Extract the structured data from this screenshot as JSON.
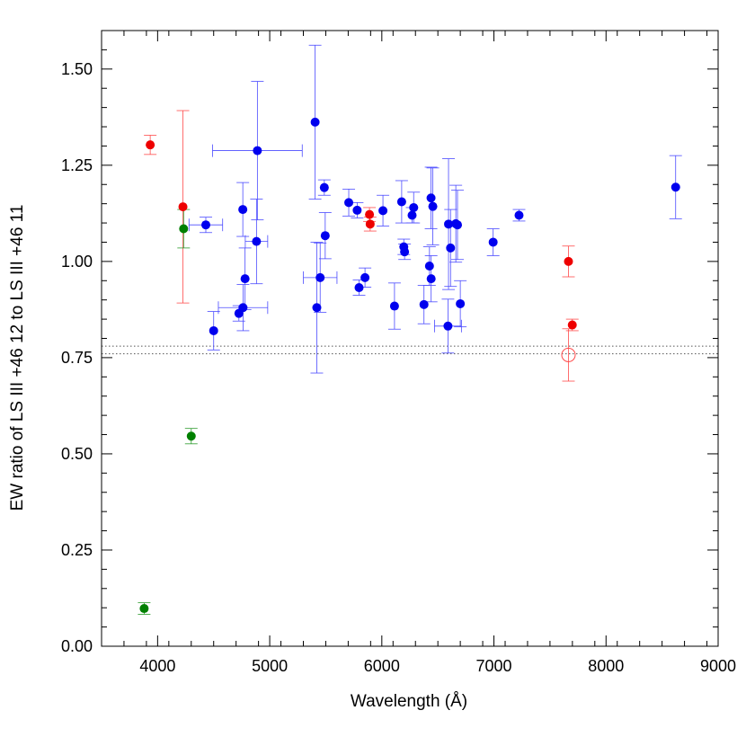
{
  "chart_data": {
    "type": "scatter",
    "title": "",
    "xlabel": "Wavelength (Å)",
    "ylabel": "EW ratio of LS III +46 12 to LS III +46 11",
    "xlim": [
      3500,
      9000
    ],
    "ylim": [
      0.0,
      1.6
    ],
    "x_ticks": [
      4000,
      5000,
      6000,
      7000,
      8000,
      9000
    ],
    "x_tick_labels": [
      "4000",
      "5000",
      "6000",
      "7000",
      "8000",
      "9000"
    ],
    "y_ticks": [
      0.0,
      0.25,
      0.5,
      0.75,
      1.0,
      1.25,
      1.5
    ],
    "y_tick_labels": [
      "0.00",
      "0.25",
      "0.50",
      "0.75",
      "1.00",
      "1.25",
      "1.50"
    ],
    "reference_lines": [
      0.76,
      0.78
    ],
    "colors": {
      "blue": "#0000ee",
      "red": "#ee0000",
      "green": "#008000",
      "ref_line": "#555555"
    },
    "series": [
      {
        "name": "blue",
        "points": [
          {
            "x": 4430,
            "y": 1.095,
            "ey": 0.02,
            "ex": 150
          },
          {
            "x": 4500,
            "y": 0.82,
            "ey": 0.05
          },
          {
            "x": 4725,
            "y": 0.865,
            "ey": 0.02
          },
          {
            "x": 4760,
            "y": 1.135,
            "ey": 0.07
          },
          {
            "x": 4762,
            "y": 0.88,
            "ey": 0.06,
            "ex": 220
          },
          {
            "x": 4780,
            "y": 0.955,
            "ey": 0.08
          },
          {
            "x": 4882,
            "y": 1.052,
            "ey": 0.11,
            "ex": 100
          },
          {
            "x": 4890,
            "y": 1.288,
            "ey": 0.18,
            "ex": 400
          },
          {
            "x": 5405,
            "y": 1.362,
            "ey": 0.2
          },
          {
            "x": 5420,
            "y": 0.88,
            "ey": 0.17
          },
          {
            "x": 5450,
            "y": 0.958,
            "ey": 0.09,
            "ex": 150
          },
          {
            "x": 5487,
            "y": 1.192,
            "ey": 0.02
          },
          {
            "x": 5495,
            "y": 1.067,
            "ey": 0.06
          },
          {
            "x": 5705,
            "y": 1.153,
            "ey": 0.035
          },
          {
            "x": 5780,
            "y": 1.133,
            "ey": 0.02
          },
          {
            "x": 5797,
            "y": 0.932,
            "ey": 0.02
          },
          {
            "x": 5850,
            "y": 0.958,
            "ey": 0.025
          },
          {
            "x": 6010,
            "y": 1.132,
            "ey": 0.04
          },
          {
            "x": 6113,
            "y": 0.884,
            "ey": 0.06
          },
          {
            "x": 6177,
            "y": 1.155,
            "ey": 0.055
          },
          {
            "x": 6196,
            "y": 1.038,
            "ey": 0.02
          },
          {
            "x": 6203,
            "y": 1.025,
            "ey": 0.02
          },
          {
            "x": 6270,
            "y": 1.12,
            "ey": 0.02
          },
          {
            "x": 6284,
            "y": 1.14,
            "ey": 0.04
          },
          {
            "x": 6376,
            "y": 0.888,
            "ey": 0.05
          },
          {
            "x": 6425,
            "y": 0.988,
            "ey": 0.05
          },
          {
            "x": 6439,
            "y": 1.165,
            "ey": 0.08
          },
          {
            "x": 6440,
            "y": 0.955,
            "ey": 0.06
          },
          {
            "x": 6455,
            "y": 1.143,
            "ey": 0.1
          },
          {
            "x": 6590,
            "y": 0.832,
            "ey": 0.07,
            "ex": 120
          },
          {
            "x": 6595,
            "y": 1.097,
            "ey": 0.17
          },
          {
            "x": 6613,
            "y": 1.035,
            "ey": 0.1
          },
          {
            "x": 6660,
            "y": 1.098,
            "ey": 0.1
          },
          {
            "x": 6675,
            "y": 1.095,
            "ey": 0.09
          },
          {
            "x": 6700,
            "y": 0.89,
            "ey": 0.06
          },
          {
            "x": 6993,
            "y": 1.05,
            "ey": 0.035
          },
          {
            "x": 7224,
            "y": 1.12,
            "ey": 0.015
          },
          {
            "x": 8621,
            "y": 1.193,
            "ey": 0.082
          }
        ]
      },
      {
        "name": "red",
        "points": [
          {
            "x": 3934,
            "y": 1.303,
            "ey": 0.025
          },
          {
            "x": 4226,
            "y": 1.142,
            "ey": 0.25
          },
          {
            "x": 5890,
            "y": 1.122,
            "ey": 0.018
          },
          {
            "x": 5896,
            "y": 1.097,
            "ey": 0.018
          },
          {
            "x": 7665,
            "y": 1.0,
            "ey": 0.04
          },
          {
            "x": 7699,
            "y": 0.835,
            "ey": 0.015
          },
          {
            "x": 7665,
            "y": 0.757,
            "ey": 0.068,
            "open": true
          }
        ]
      },
      {
        "name": "green",
        "points": [
          {
            "x": 3880,
            "y": 0.098,
            "ey": 0.015
          },
          {
            "x": 4232,
            "y": 1.085,
            "ey": 0.05
          },
          {
            "x": 4300,
            "y": 0.546,
            "ey": 0.02
          }
        ]
      }
    ]
  }
}
